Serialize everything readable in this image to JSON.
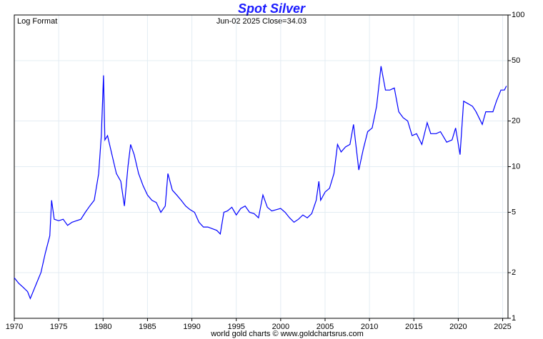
{
  "chart_data": {
    "type": "line",
    "title": "Spot Silver",
    "annotations": [
      "Log Format",
      "Jun-02  2025   Close=34.03"
    ],
    "footer": "world gold charts © www.goldchartsrus.com",
    "x": [
      1970.0,
      1970.5,
      1971.0,
      1971.5,
      1971.8,
      1972.5,
      1973.0,
      1973.5,
      1974.0,
      1974.2,
      1974.5,
      1975.0,
      1975.5,
      1976.0,
      1976.5,
      1977.0,
      1977.5,
      1978.0,
      1978.5,
      1979.0,
      1979.5,
      1979.8,
      1980.05,
      1980.2,
      1980.5,
      1981.0,
      1981.5,
      1982.0,
      1982.4,
      1982.8,
      1983.1,
      1983.5,
      1984.0,
      1984.5,
      1985.0,
      1985.5,
      1986.0,
      1986.5,
      1987.0,
      1987.3,
      1987.8,
      1988.3,
      1988.8,
      1989.3,
      1989.8,
      1990.3,
      1990.8,
      1991.3,
      1991.8,
      1992.3,
      1992.8,
      1993.2,
      1993.6,
      1994.0,
      1994.5,
      1995.0,
      1995.5,
      1996.0,
      1996.5,
      1997.0,
      1997.5,
      1998.0,
      1998.5,
      1999.0,
      1999.5,
      2000.0,
      2000.5,
      2001.0,
      2001.5,
      2002.0,
      2002.5,
      2003.0,
      2003.5,
      2004.0,
      2004.3,
      2004.5,
      2005.0,
      2005.5,
      2006.0,
      2006.4,
      2006.8,
      2007.3,
      2007.8,
      2008.2,
      2008.8,
      2009.3,
      2009.8,
      2010.3,
      2010.8,
      2011.3,
      2011.8,
      2012.3,
      2012.8,
      2013.3,
      2013.8,
      2014.3,
      2014.8,
      2015.3,
      2015.9,
      2016.5,
      2016.9,
      2017.5,
      2018.0,
      2018.7,
      2019.3,
      2019.7,
      2020.2,
      2020.6,
      2021.1,
      2021.6,
      2022.0,
      2022.7,
      2023.1,
      2023.5,
      2023.9,
      2024.3,
      2024.8,
      2025.2,
      2025.42
    ],
    "values": [
      1.85,
      1.7,
      1.6,
      1.5,
      1.35,
      1.7,
      2.0,
      2.7,
      3.5,
      6.0,
      4.5,
      4.4,
      4.5,
      4.1,
      4.3,
      4.4,
      4.5,
      5.0,
      5.5,
      6.0,
      9.0,
      16,
      40,
      15,
      16,
      12,
      9,
      8,
      5.5,
      10,
      14,
      12,
      9,
      7.5,
      6.5,
      6.0,
      5.8,
      5.0,
      5.5,
      9,
      7.0,
      6.5,
      6.0,
      5.5,
      5.2,
      5.0,
      4.3,
      4.0,
      4.0,
      3.9,
      3.8,
      3.6,
      5.0,
      5.1,
      5.4,
      4.8,
      5.3,
      5.5,
      5.0,
      4.9,
      4.6,
      6.5,
      5.4,
      5.1,
      5.2,
      5.3,
      5.0,
      4.6,
      4.3,
      4.5,
      4.8,
      4.6,
      4.9,
      6.0,
      8.0,
      6.0,
      6.8,
      7.2,
      9.0,
      14,
      12.5,
      13.5,
      14,
      19,
      9.5,
      13,
      17,
      18,
      25,
      46,
      32,
      32,
      33,
      23,
      21,
      20,
      16,
      16.5,
      14,
      19.5,
      16.5,
      16.5,
      17,
      14.5,
      15,
      18,
      12,
      27,
      26,
      25,
      23,
      19,
      23,
      23,
      23,
      27,
      32,
      32,
      34.03
    ],
    "color": "#0000ff",
    "xlim": [
      1970,
      2025.6
    ],
    "xticks": [
      1970,
      1975,
      1980,
      1985,
      1990,
      1995,
      2000,
      2005,
      2010,
      2015,
      2020,
      2025
    ],
    "ylim": [
      1,
      100
    ],
    "yticks": [
      1,
      2,
      5,
      10,
      20,
      50,
      100
    ],
    "log_scale": true,
    "grid": true
  }
}
